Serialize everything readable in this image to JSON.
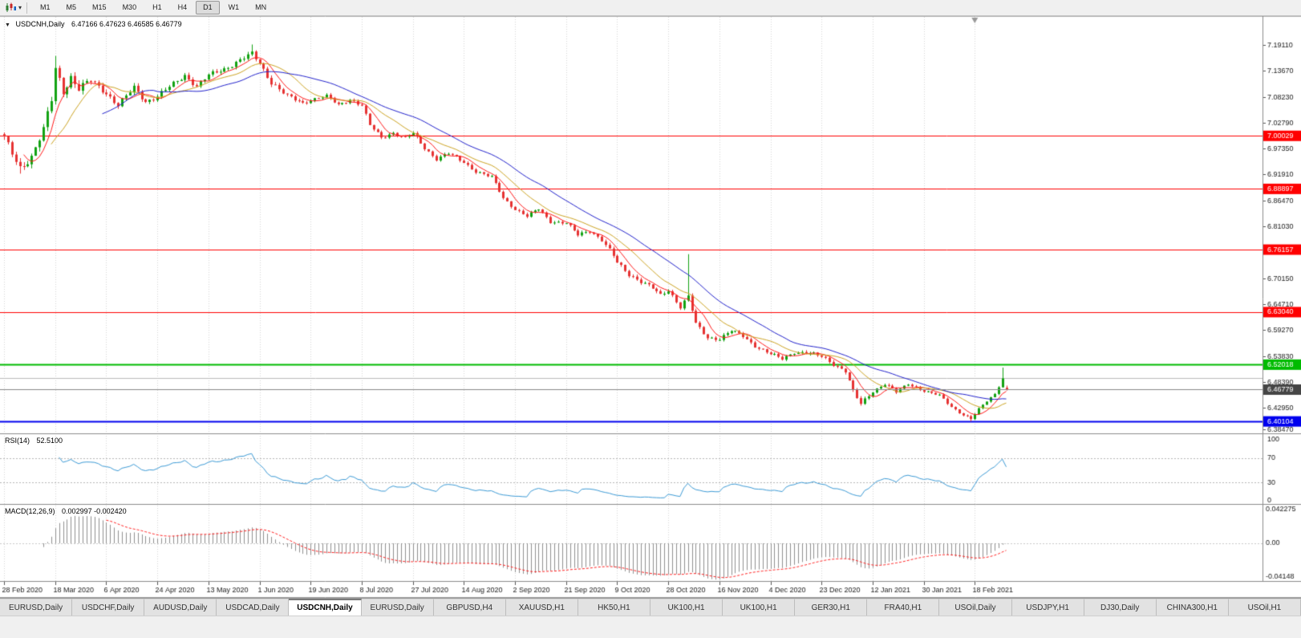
{
  "toolbar": {
    "timeframes": [
      "M1",
      "M5",
      "M15",
      "M30",
      "H1",
      "H4",
      "D1",
      "W1",
      "MN"
    ],
    "active": "D1"
  },
  "tabs": {
    "active_index": 4,
    "items": [
      "EURUSD,Daily",
      "USDCHF,Daily",
      "AUDUSD,Daily",
      "USDCAD,Daily",
      "USDCNH,Daily",
      "EURUSD,Daily",
      "GBPUSD,H4",
      "XAUUSD,H1",
      "HK50,H1",
      "UK100,H1",
      "UK100,H1",
      "GER30,H1",
      "FRA40,H1",
      "USOil,Daily",
      "USDJPY,H1",
      "DJ30,Daily",
      "CHINA300,H1",
      "USOil,H1"
    ]
  },
  "chart_data": {
    "type": "candlestick",
    "symbol": "USDCNH,Daily",
    "ohlc_display": "6.47166 6.47623 6.46585 6.46779",
    "last_bar": {
      "open": 6.47166,
      "high": 6.47623,
      "low": 6.46585,
      "close": 6.46779
    },
    "bars": 256,
    "bars_per_label": 13,
    "shift_marker_bar": 247,
    "candle_up_color": "#12a212",
    "candle_down_color": "#e63232",
    "price_axis": {
      "min": 6.376,
      "max": 7.25,
      "ticks": [
        "7.19110",
        "7.13670",
        "7.08230",
        "7.02790",
        "6.97350",
        "6.91910",
        "6.86470",
        "6.81030",
        "6.75590",
        "6.70150",
        "6.64710",
        "6.59270",
        "6.53830",
        "6.48390",
        "6.42950",
        "6.38470"
      ]
    },
    "time_axis": [
      "28 Feb 2020",
      "18 Mar 2020",
      "6 Apr 2020",
      "24 Apr 2020",
      "13 May 2020",
      "1 Jun 2020",
      "19 Jun 2020",
      "8 Jul 2020",
      "27 Jul 2020",
      "14 Aug 2020",
      "2 Sep 2020",
      "21 Sep 2020",
      "9 Oct 2020",
      "28 Oct 2020",
      "16 Nov 2020",
      "4 Dec 2020",
      "23 Dec 2020",
      "12 Jan 2021",
      "30 Jan 2021",
      "18 Feb 2021"
    ],
    "levels": [
      {
        "value": 7.00029,
        "color": "#ff0000",
        "line_width": 1,
        "label": "7.00029"
      },
      {
        "value": 6.88897,
        "color": "#ff0000",
        "line_width": 1,
        "label": "6.88897"
      },
      {
        "value": 6.76157,
        "color": "#ff0000",
        "line_width": 1,
        "label": "6.76157"
      },
      {
        "value": 6.6304,
        "color": "#ff0000",
        "line_width": 1,
        "label": "6.63040"
      },
      {
        "value": 6.52018,
        "color": "#00bb00",
        "line_width": 2,
        "label": "6.52018"
      },
      {
        "value": 6.4919,
        "color": "#bbbbbb",
        "line_width": 1,
        "label": null
      },
      {
        "value": 6.40104,
        "color": "#0000ee",
        "line_width": 2,
        "label": "6.40104"
      }
    ],
    "current_price": {
      "value": 6.46779,
      "label": "6.46779",
      "line_color": "#888888",
      "label_bg": "#454545"
    },
    "moving_averages": [
      {
        "period": 6,
        "color": "#ff1a1a"
      },
      {
        "period": 13,
        "color": "#cda423"
      },
      {
        "period": 26,
        "color": "#2222cc"
      }
    ],
    "close_keypoints": [
      [
        0,
        6.995
      ],
      [
        2,
        6.962
      ],
      [
        4,
        6.934
      ],
      [
        7,
        6.957
      ],
      [
        10,
        7.012
      ],
      [
        12,
        7.075
      ],
      [
        13,
        7.142
      ],
      [
        15,
        7.095
      ],
      [
        17,
        7.124
      ],
      [
        19,
        7.098
      ],
      [
        22,
        7.116
      ],
      [
        26,
        7.091
      ],
      [
        29,
        7.064
      ],
      [
        33,
        7.101
      ],
      [
        36,
        7.073
      ],
      [
        39,
        7.083
      ],
      [
        43,
        7.109
      ],
      [
        46,
        7.128
      ],
      [
        49,
        7.104
      ],
      [
        52,
        7.127
      ],
      [
        56,
        7.141
      ],
      [
        60,
        7.159
      ],
      [
        63,
        7.172
      ],
      [
        65,
        7.153
      ],
      [
        68,
        7.113
      ],
      [
        72,
        7.083
      ],
      [
        76,
        7.069
      ],
      [
        78,
        7.077
      ],
      [
        82,
        7.083
      ],
      [
        85,
        7.065
      ],
      [
        88,
        7.077
      ],
      [
        91,
        7.064
      ],
      [
        93,
        7.022
      ],
      [
        96,
        6.997
      ],
      [
        99,
        7.007
      ],
      [
        102,
        6.995
      ],
      [
        104,
        7.005
      ],
      [
        107,
        6.975
      ],
      [
        110,
        6.952
      ],
      [
        113,
        6.963
      ],
      [
        117,
        6.945
      ],
      [
        120,
        6.926
      ],
      [
        124,
        6.913
      ],
      [
        127,
        6.87
      ],
      [
        130,
        6.847
      ],
      [
        133,
        6.831
      ],
      [
        136,
        6.847
      ],
      [
        139,
        6.821
      ],
      [
        143,
        6.817
      ],
      [
        146,
        6.792
      ],
      [
        149,
        6.802
      ],
      [
        152,
        6.782
      ],
      [
        155,
        6.748
      ],
      [
        156,
        6.734
      ],
      [
        159,
        6.71
      ],
      [
        162,
        6.695
      ],
      [
        165,
        6.68
      ],
      [
        167,
        6.665
      ],
      [
        169,
        6.677
      ],
      [
        172,
        6.642
      ],
      [
        174,
        6.663
      ],
      [
        176,
        6.605
      ],
      [
        179,
        6.577
      ],
      [
        182,
        6.575
      ],
      [
        185,
        6.591
      ],
      [
        188,
        6.58
      ],
      [
        191,
        6.56
      ],
      [
        195,
        6.542
      ],
      [
        198,
        6.532
      ],
      [
        201,
        6.547
      ],
      [
        204,
        6.545
      ],
      [
        208,
        6.537
      ],
      [
        211,
        6.522
      ],
      [
        214,
        6.507
      ],
      [
        216,
        6.463
      ],
      [
        218,
        6.437
      ],
      [
        221,
        6.465
      ],
      [
        224,
        6.48
      ],
      [
        227,
        6.462
      ],
      [
        230,
        6.48
      ],
      [
        234,
        6.465
      ],
      [
        238,
        6.455
      ],
      [
        241,
        6.432
      ],
      [
        244,
        6.415
      ],
      [
        246,
        6.406
      ],
      [
        248,
        6.426
      ],
      [
        250,
        6.444
      ],
      [
        252,
        6.459
      ],
      [
        254,
        6.492
      ],
      [
        255,
        6.46779
      ]
    ],
    "volatility_keypoints": [
      [
        0,
        0.011
      ],
      [
        10,
        0.013
      ],
      [
        16,
        0.013
      ],
      [
        25,
        0.009
      ],
      [
        50,
        0.007
      ],
      [
        68,
        0.008
      ],
      [
        80,
        0.005
      ],
      [
        100,
        0.0055
      ],
      [
        120,
        0.005
      ],
      [
        140,
        0.005
      ],
      [
        156,
        0.0065
      ],
      [
        175,
        0.0065
      ],
      [
        195,
        0.005
      ],
      [
        215,
        0.0065
      ],
      [
        230,
        0.004
      ],
      [
        255,
        0.0035
      ]
    ],
    "spikes": [
      {
        "index": 4,
        "low": 6.921
      },
      {
        "index": 13,
        "high": 7.168
      },
      {
        "index": 63,
        "high": 7.192
      },
      {
        "index": 174,
        "high": 6.752
      },
      {
        "index": 246,
        "low": 6.401
      },
      {
        "index": 254,
        "high": 6.514
      }
    ],
    "rsi": {
      "name": "RSI(14)",
      "value": "52.5100",
      "period": 14,
      "color": "#3d9bd6",
      "levels": [
        100,
        70,
        30,
        0
      ],
      "guides": [
        70,
        30
      ]
    },
    "macd": {
      "name": "MACD(12,26,9)",
      "values": "0.002997 -0.002420",
      "fast": 12,
      "slow": 26,
      "signal": 9,
      "axis_labels": [
        "0.042275",
        "0.00",
        "-0.04148"
      ],
      "histogram_color": "#909090",
      "signal_color": "#ff2020"
    }
  }
}
